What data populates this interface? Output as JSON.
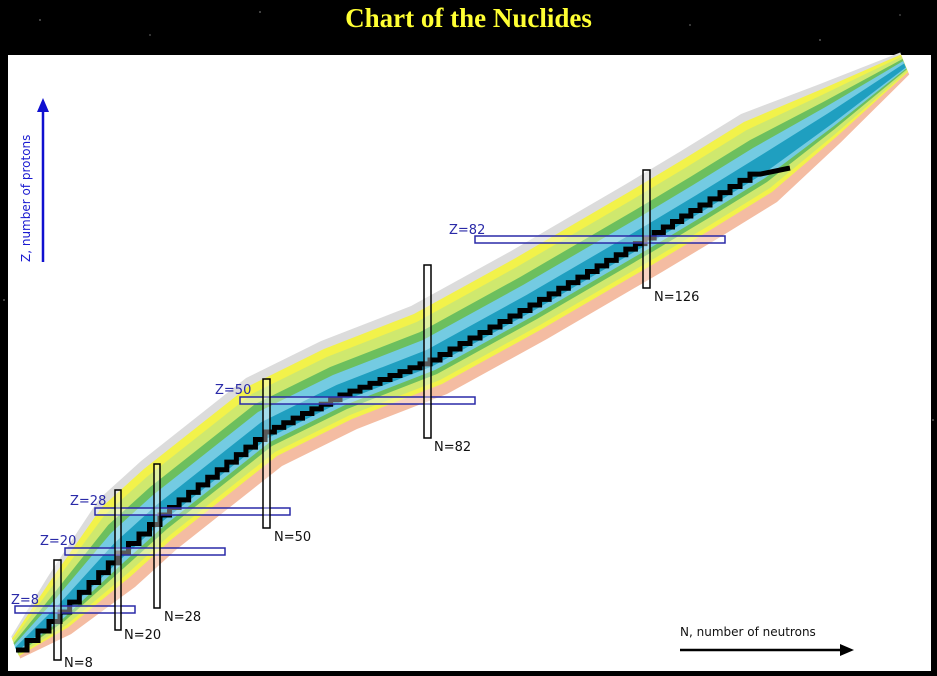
{
  "title": "Chart of the Nuclides",
  "axes": {
    "y_label": "Z, number of protons",
    "x_label": "N, number of neutrons"
  },
  "magic_proton_labels": [
    "Z=8",
    "Z=20",
    "Z=28",
    "Z=50",
    "Z=82"
  ],
  "magic_neutron_labels": [
    "N=8",
    "N=20",
    "N=28",
    "N=50",
    "N=82",
    "N=126"
  ],
  "colors": {
    "title": "#ffff33",
    "proton_marker": "#2a2aa8",
    "neutron_marker": "#000000",
    "stable": "#000000"
  }
}
